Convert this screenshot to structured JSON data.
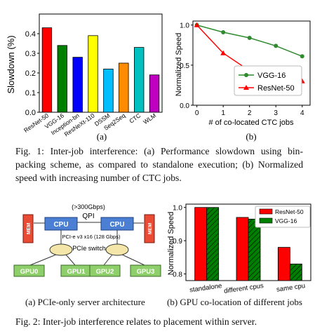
{
  "figure1": {
    "caption_a_label": "(a)",
    "caption_b_label": "(b)",
    "caption": "Fig. 1: Inter-job interference: (a) Performance slowdown using bin-packing scheme, as compared to standalone execution; (b) Normalized speed with increasing number of CTC jobs.",
    "chart_a": {
      "type": "bar",
      "ylabel": "Slowdown (%)",
      "ylim": [
        0,
        0.5
      ],
      "yticks": [
        "0.0",
        "0.1",
        "0.2",
        "0.3",
        "0.4"
      ],
      "categories": [
        "ResNet-50",
        "VGG-16",
        "Inception-bn",
        "ResNeXt-110",
        "DSSM",
        "Seq2Seq",
        "CTC",
        "WLM"
      ],
      "values": [
        0.43,
        0.34,
        0.28,
        0.39,
        0.22,
        0.25,
        0.33,
        0.19
      ],
      "colors": [
        "#ff0000",
        "#008000",
        "#0000ff",
        "#ffff00",
        "#00bfff",
        "#ff8c00",
        "#00c0c0",
        "#c000c0"
      ]
    },
    "chart_b": {
      "type": "line",
      "xlabel": "# of co-located CTC jobs",
      "ylabel": "Normalized Speed",
      "x": [
        0,
        1,
        2,
        3,
        4
      ],
      "xticks": [
        "0",
        "1",
        "2",
        "3",
        "4"
      ],
      "yticks": [
        "0.0",
        "0.5",
        "1.0"
      ],
      "ylim": [
        0,
        1.05
      ],
      "legend_position": "top-right",
      "series": [
        {
          "name": "VGG-16",
          "values": [
            1.0,
            0.91,
            0.84,
            0.74,
            0.61
          ],
          "color": "#2e8b2e",
          "marker": "circle"
        },
        {
          "name": "ResNet-50",
          "values": [
            1.0,
            0.65,
            0.43,
            0.36,
            0.3
          ],
          "color": "#ff0000",
          "marker": "triangle"
        }
      ]
    }
  },
  "figure2": {
    "diagram": {
      "qpi_bandwidth": "(>300Gbps)",
      "qpi_label": "QPI",
      "cpu_label": "CPU",
      "mem_label": "MEM",
      "pcie_link": "PCI-e v3 x16 (128 Gbps)",
      "switch_label": "PCIe switch",
      "gpus": [
        "GPU0",
        "GPU1",
        "GPU2",
        "GPU3"
      ]
    },
    "chart": {
      "type": "bar",
      "ylabel": "Normalized Speed",
      "categories": [
        "standalone",
        "different cpus",
        "same cpu"
      ],
      "yticks": [
        "0.8",
        "0.9",
        "1.0"
      ],
      "ylim": [
        0.8,
        1.0
      ],
      "legend_position": "top-right",
      "series": [
        {
          "name": "ResNet-50",
          "values": [
            1.0,
            0.97,
            0.88
          ],
          "color": "#ff0000"
        },
        {
          "name": "VGG-16",
          "values": [
            1.0,
            0.965,
            0.83
          ],
          "color": "#008000"
        }
      ]
    },
    "sub_a": "(a) PCIe-only server architecture",
    "sub_b": "(b) GPU co-location of different jobs",
    "caption": "Fig. 2: Inter-job interference relates to placement within server."
  }
}
